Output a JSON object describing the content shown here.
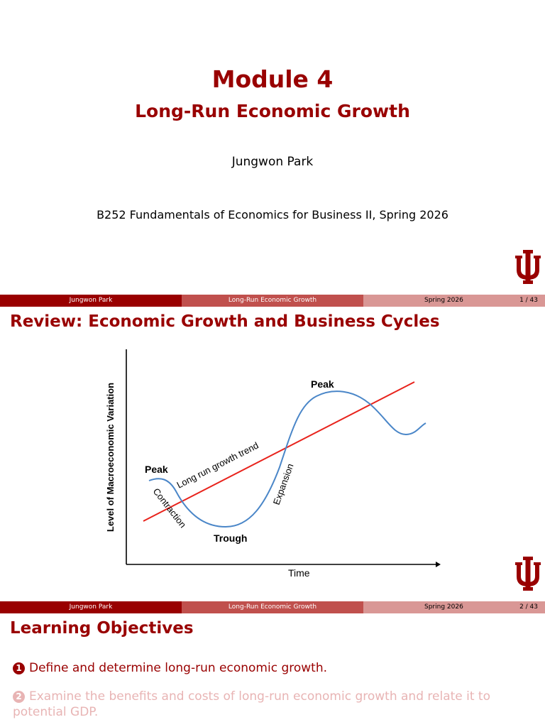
{
  "slide1": {
    "title": "Module 4",
    "subtitle": "Long-Run Economic Growth",
    "author": "Jungwon Park",
    "course": "B252 Fundamentals of Economics for Business II, Spring 2026"
  },
  "footer": {
    "author": "Jungwon Park",
    "topic": "Long-Run Economic Growth",
    "term": "Spring 2026"
  },
  "pages": [
    "1 / 43",
    "2 / 43"
  ],
  "slide2": {
    "title": "Review: Economic Growth and Business Cycles",
    "figure": {
      "ylabel": "Level of Macroeconomic Variation",
      "xlabel": "Time",
      "trend_label": "Long run growth trend",
      "labels": {
        "peak_left": "Peak",
        "peak_right": "Peak",
        "trough": "Trough",
        "contraction": "Contraction",
        "expansion": "Expansion"
      }
    }
  },
  "slide3": {
    "title": "Learning Objectives",
    "objectives": [
      {
        "num": "1",
        "text": "Define and determine long-run economic growth."
      },
      {
        "num": "2",
        "text": "Examine the benefits and costs of long-run economic growth and relate it to potential GDP."
      }
    ]
  },
  "colors": {
    "accent": "#990000",
    "curve": "#4a86c8",
    "trend": "#e8231c",
    "footer_mid": "#c0504d",
    "footer_light": "#d99795"
  }
}
